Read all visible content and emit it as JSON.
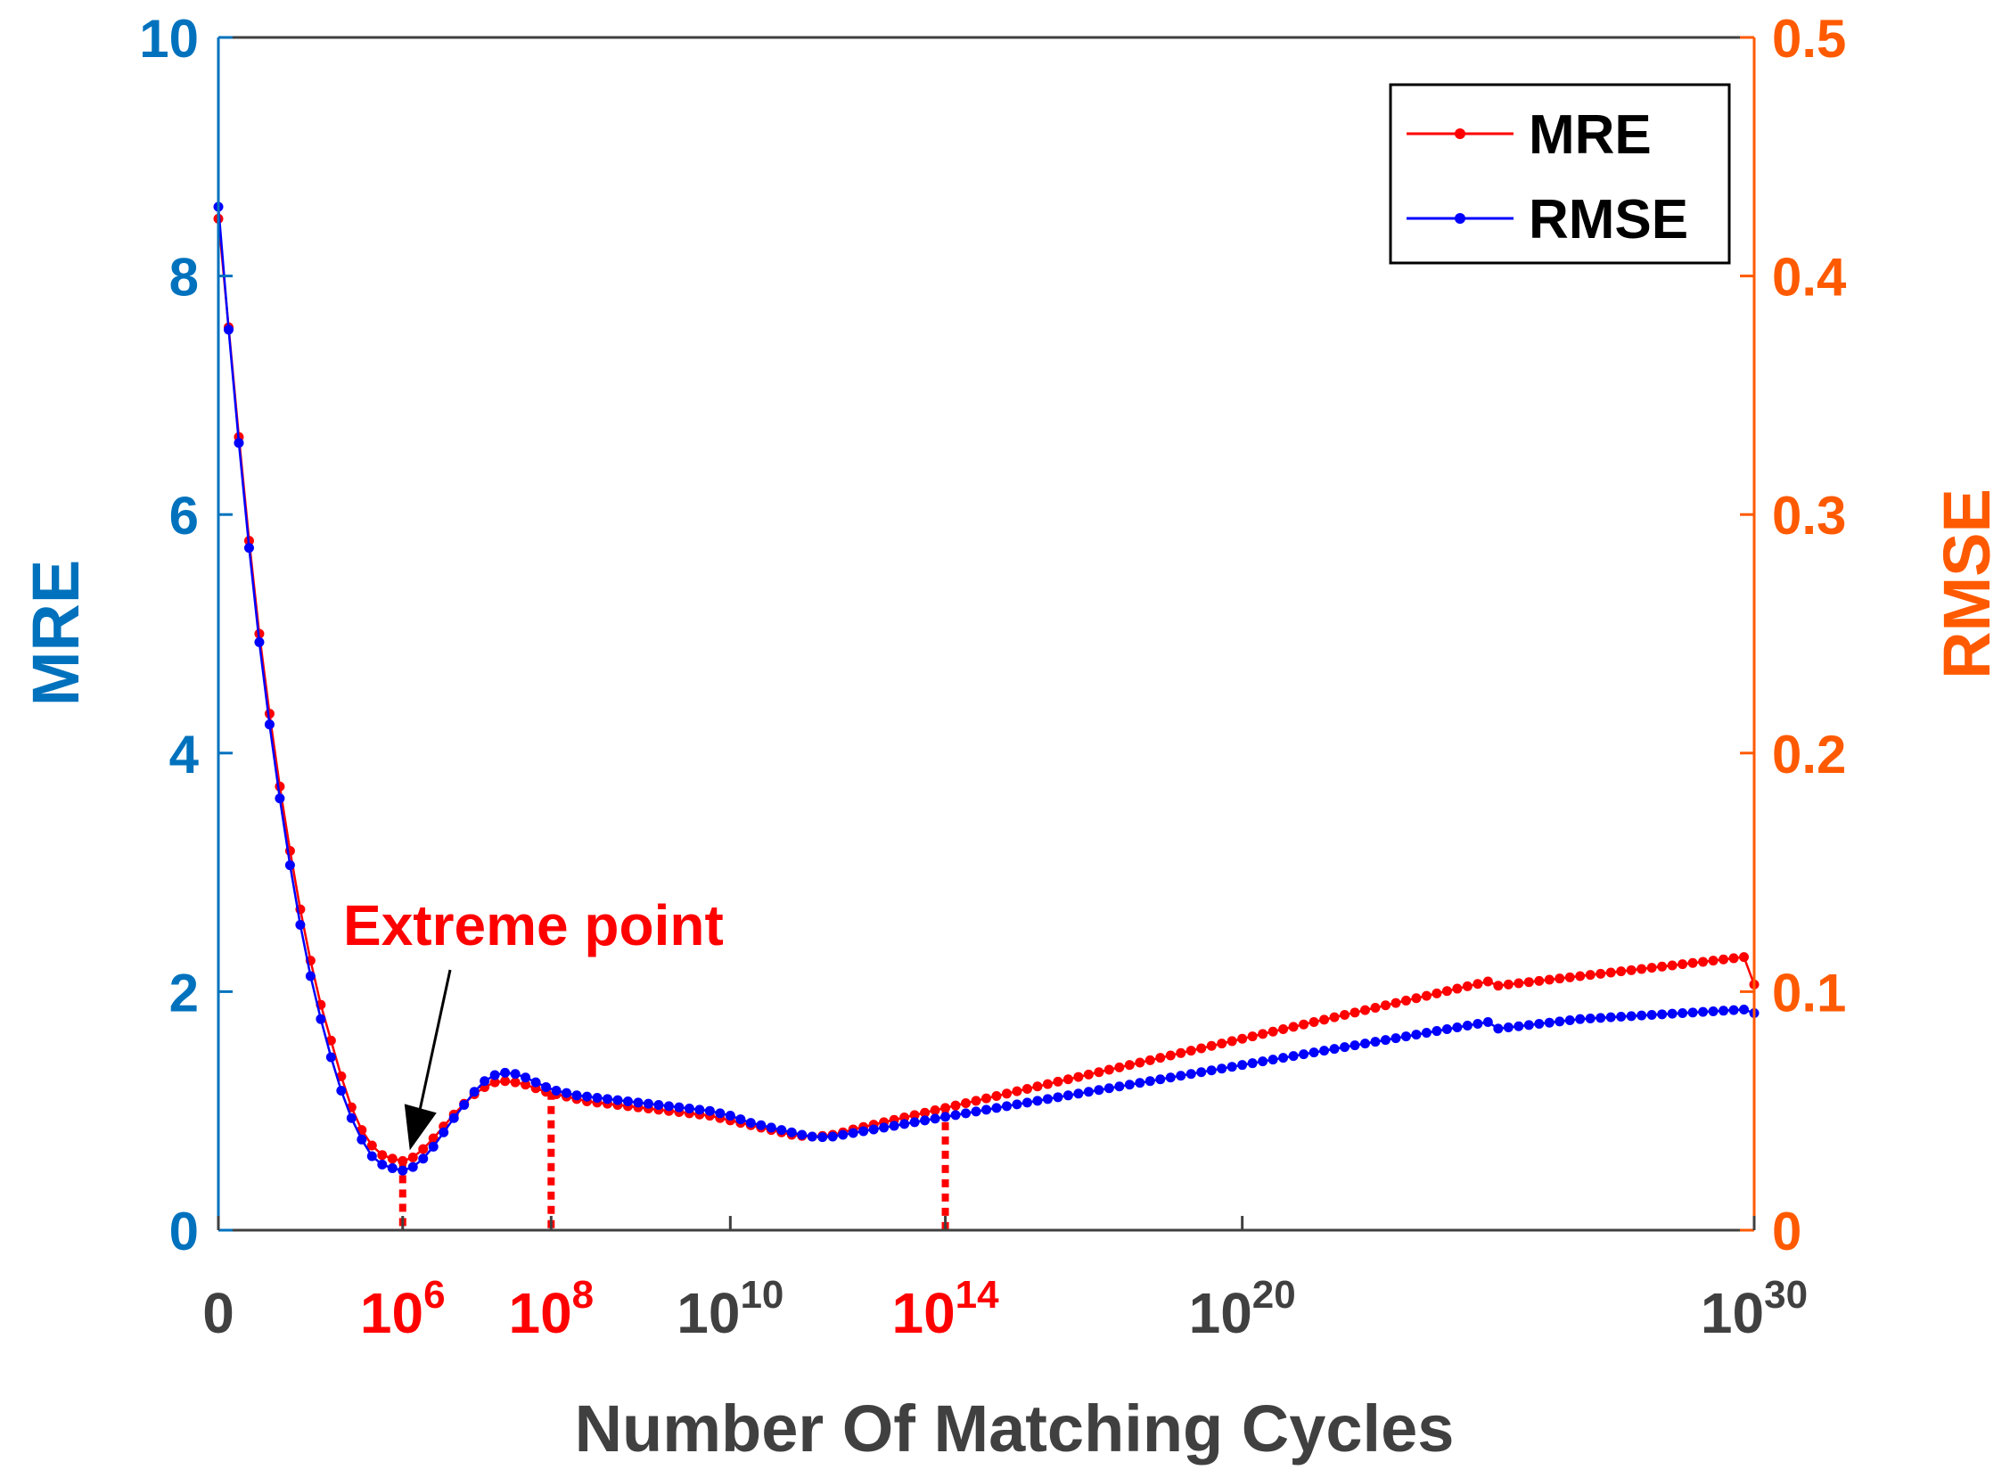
{
  "chart_data": {
    "type": "line",
    "title": "",
    "xlabel": "Number Of Matching Cycles",
    "ylabel_left": "MRE",
    "ylabel_right": "RMSE",
    "ylim_left": [
      0,
      10
    ],
    "ylim_right": [
      0,
      0.5
    ],
    "yticks_left": [
      "0",
      "2",
      "4",
      "6",
      "8",
      "10"
    ],
    "yticks_right": [
      "0",
      "0.1",
      "0.2",
      "0.3",
      "0.4",
      "0.5"
    ],
    "xticks": [
      {
        "base": "0",
        "exp": "",
        "pos": 0,
        "highlight": false
      },
      {
        "base": "10",
        "exp": "6",
        "pos": 1.8,
        "highlight": true
      },
      {
        "base": "10",
        "exp": "8",
        "pos": 3.25,
        "highlight": true
      },
      {
        "base": "10",
        "exp": "10",
        "pos": 5,
        "highlight": false
      },
      {
        "base": "10",
        "exp": "14",
        "pos": 7.1,
        "highlight": true
      },
      {
        "base": "10",
        "exp": "20",
        "pos": 10,
        "highlight": false
      },
      {
        "base": "10",
        "exp": "30",
        "pos": 15,
        "highlight": false
      }
    ],
    "x_range": [
      0,
      15
    ],
    "markers": [
      1.8,
      3.25,
      7.1
    ],
    "legend": {
      "position": "top-right",
      "entries": [
        "MRE",
        "RMSE"
      ]
    },
    "annotation": {
      "text": "Extreme point",
      "x": 1.8,
      "y": 0.58
    },
    "colors": {
      "mre": "#ff0000",
      "rmse": "#0000ff",
      "left_axis": "#0072bd",
      "right_axis": "#ff5a00",
      "dark_tick": "#404040",
      "marker": "#ff0000"
    },
    "series": [
      {
        "name": "MRE",
        "axis": "left",
        "x": [
          0,
          0.1,
          0.2,
          0.3,
          0.4,
          0.5,
          0.6,
          0.7,
          0.8,
          0.9,
          1.0,
          1.1,
          1.2,
          1.3,
          1.4,
          1.5,
          1.6,
          1.7,
          1.8,
          1.9,
          2.0,
          2.1,
          2.2,
          2.3,
          2.4,
          2.5,
          2.6,
          2.7,
          2.8,
          2.9,
          3.0,
          3.1,
          3.2,
          3.3,
          3.4,
          3.5,
          3.6,
          3.7,
          3.8,
          3.9,
          4.0,
          4.1,
          4.2,
          4.3,
          4.4,
          4.5,
          4.6,
          4.7,
          4.8,
          4.9,
          5.0,
          5.1,
          5.2,
          5.3,
          5.4,
          5.5,
          5.6,
          5.7,
          5.8,
          5.9,
          6.0,
          6.1,
          6.2,
          6.3,
          6.4,
          6.5,
          6.6,
          6.7,
          6.8,
          6.9,
          7.0,
          7.1,
          7.2,
          7.3,
          7.4,
          7.5,
          7.6,
          7.7,
          7.8,
          7.9,
          8.0,
          8.1,
          8.2,
          8.3,
          8.4,
          8.5,
          8.6,
          8.7,
          8.8,
          8.9,
          9.0,
          9.1,
          9.2,
          9.3,
          9.4,
          9.5,
          9.6,
          9.7,
          9.8,
          9.9,
          10.0,
          10.1,
          10.2,
          10.3,
          10.4,
          10.5,
          10.6,
          10.7,
          10.8,
          10.9,
          11.0,
          11.1,
          11.2,
          11.3,
          11.4,
          11.5,
          11.6,
          11.7,
          11.8,
          11.9,
          12.0,
          12.1,
          12.2,
          12.3,
          12.4,
          12.5,
          12.6,
          12.7,
          12.8,
          12.9,
          13.0,
          13.1,
          13.2,
          13.3,
          13.4,
          13.5,
          13.6,
          13.7,
          13.8,
          13.9,
          14.0,
          14.1,
          14.2,
          14.3,
          14.4,
          14.5,
          14.6,
          14.7,
          14.8,
          14.9,
          15.0
        ],
        "y": [
          8.48,
          7.57,
          6.65,
          5.78,
          5.0,
          4.33,
          3.72,
          3.18,
          2.69,
          2.26,
          1.89,
          1.59,
          1.29,
          1.03,
          0.84,
          0.71,
          0.63,
          0.6,
          0.58,
          0.61,
          0.68,
          0.77,
          0.87,
          0.97,
          1.06,
          1.14,
          1.2,
          1.24,
          1.25,
          1.24,
          1.22,
          1.19,
          1.16,
          1.14,
          1.12,
          1.1,
          1.08,
          1.07,
          1.06,
          1.05,
          1.04,
          1.03,
          1.02,
          1.01,
          1.0,
          0.99,
          0.98,
          0.97,
          0.96,
          0.94,
          0.92,
          0.9,
          0.88,
          0.86,
          0.84,
          0.82,
          0.8,
          0.79,
          0.785,
          0.79,
          0.8,
          0.82,
          0.845,
          0.865,
          0.885,
          0.905,
          0.925,
          0.945,
          0.965,
          0.985,
          1.005,
          1.025,
          1.045,
          1.065,
          1.085,
          1.105,
          1.125,
          1.145,
          1.165,
          1.185,
          1.205,
          1.225,
          1.245,
          1.265,
          1.285,
          1.305,
          1.325,
          1.345,
          1.365,
          1.385,
          1.405,
          1.425,
          1.445,
          1.465,
          1.485,
          1.505,
          1.525,
          1.545,
          1.565,
          1.585,
          1.605,
          1.625,
          1.645,
          1.665,
          1.685,
          1.705,
          1.725,
          1.745,
          1.765,
          1.785,
          1.805,
          1.825,
          1.845,
          1.865,
          1.885,
          1.905,
          1.925,
          1.945,
          1.965,
          1.985,
          2.005,
          2.025,
          2.045,
          2.065,
          2.085,
          2.05,
          2.06,
          2.07,
          2.08,
          2.09,
          2.1,
          2.11,
          2.12,
          2.13,
          2.14,
          2.15,
          2.16,
          2.17,
          2.18,
          2.19,
          2.2,
          2.21,
          2.22,
          2.23,
          2.24,
          2.25,
          2.26,
          2.27,
          2.28,
          2.29,
          2.06
        ]
      },
      {
        "name": "RMSE",
        "axis": "left",
        "x": [
          0,
          0.1,
          0.2,
          0.3,
          0.4,
          0.5,
          0.6,
          0.7,
          0.8,
          0.9,
          1.0,
          1.1,
          1.2,
          1.3,
          1.4,
          1.5,
          1.6,
          1.7,
          1.8,
          1.9,
          2.0,
          2.1,
          2.2,
          2.3,
          2.4,
          2.5,
          2.6,
          2.7,
          2.8,
          2.9,
          3.0,
          3.1,
          3.2,
          3.3,
          3.4,
          3.5,
          3.6,
          3.7,
          3.8,
          3.9,
          4.0,
          4.1,
          4.2,
          4.3,
          4.4,
          4.5,
          4.6,
          4.7,
          4.8,
          4.9,
          5.0,
          5.1,
          5.2,
          5.3,
          5.4,
          5.5,
          5.6,
          5.7,
          5.8,
          5.9,
          6.0,
          6.1,
          6.2,
          6.3,
          6.4,
          6.5,
          6.6,
          6.7,
          6.8,
          6.9,
          7.0,
          7.1,
          7.2,
          7.3,
          7.4,
          7.5,
          7.6,
          7.7,
          7.8,
          7.9,
          8.0,
          8.1,
          8.2,
          8.3,
          8.4,
          8.5,
          8.6,
          8.7,
          8.8,
          8.9,
          9.0,
          9.1,
          9.2,
          9.3,
          9.4,
          9.5,
          9.6,
          9.7,
          9.8,
          9.9,
          10.0,
          10.1,
          10.2,
          10.3,
          10.4,
          10.5,
          10.6,
          10.7,
          10.8,
          10.9,
          11.0,
          11.1,
          11.2,
          11.3,
          11.4,
          11.5,
          11.6,
          11.7,
          11.8,
          11.9,
          12.0,
          12.1,
          12.2,
          12.3,
          12.4,
          12.5,
          12.6,
          12.7,
          12.8,
          12.9,
          13.0,
          13.1,
          13.2,
          13.3,
          13.4,
          13.5,
          13.6,
          13.7,
          13.8,
          13.9,
          14.0,
          14.1,
          14.2,
          14.3,
          14.4,
          14.5,
          14.6,
          14.7,
          14.8,
          14.9,
          15.0
        ],
        "y": [
          8.58,
          7.55,
          6.6,
          5.72,
          4.93,
          4.24,
          3.62,
          3.06,
          2.56,
          2.13,
          1.77,
          1.45,
          1.17,
          0.94,
          0.76,
          0.62,
          0.55,
          0.52,
          0.5,
          0.53,
          0.6,
          0.7,
          0.82,
          0.94,
          1.05,
          1.16,
          1.25,
          1.3,
          1.32,
          1.31,
          1.28,
          1.24,
          1.2,
          1.17,
          1.15,
          1.13,
          1.12,
          1.11,
          1.1,
          1.09,
          1.08,
          1.07,
          1.06,
          1.05,
          1.04,
          1.03,
          1.02,
          1.01,
          1.0,
          0.98,
          0.96,
          0.93,
          0.9,
          0.88,
          0.86,
          0.84,
          0.82,
          0.8,
          0.785,
          0.78,
          0.785,
          0.8,
          0.815,
          0.83,
          0.845,
          0.86,
          0.875,
          0.89,
          0.905,
          0.92,
          0.935,
          0.95,
          0.965,
          0.98,
          0.995,
          1.01,
          1.025,
          1.04,
          1.055,
          1.07,
          1.085,
          1.1,
          1.115,
          1.13,
          1.145,
          1.16,
          1.175,
          1.19,
          1.205,
          1.22,
          1.235,
          1.25,
          1.265,
          1.28,
          1.295,
          1.31,
          1.325,
          1.34,
          1.355,
          1.37,
          1.385,
          1.4,
          1.415,
          1.43,
          1.445,
          1.46,
          1.475,
          1.49,
          1.505,
          1.52,
          1.535,
          1.55,
          1.565,
          1.58,
          1.595,
          1.61,
          1.625,
          1.64,
          1.655,
          1.67,
          1.685,
          1.7,
          1.715,
          1.73,
          1.745,
          1.69,
          1.7,
          1.71,
          1.72,
          1.73,
          1.74,
          1.75,
          1.76,
          1.77,
          1.775,
          1.78,
          1.785,
          1.79,
          1.795,
          1.8,
          1.805,
          1.81,
          1.815,
          1.82,
          1.825,
          1.83,
          1.835,
          1.84,
          1.845,
          1.85,
          1.82
        ]
      }
    ]
  }
}
